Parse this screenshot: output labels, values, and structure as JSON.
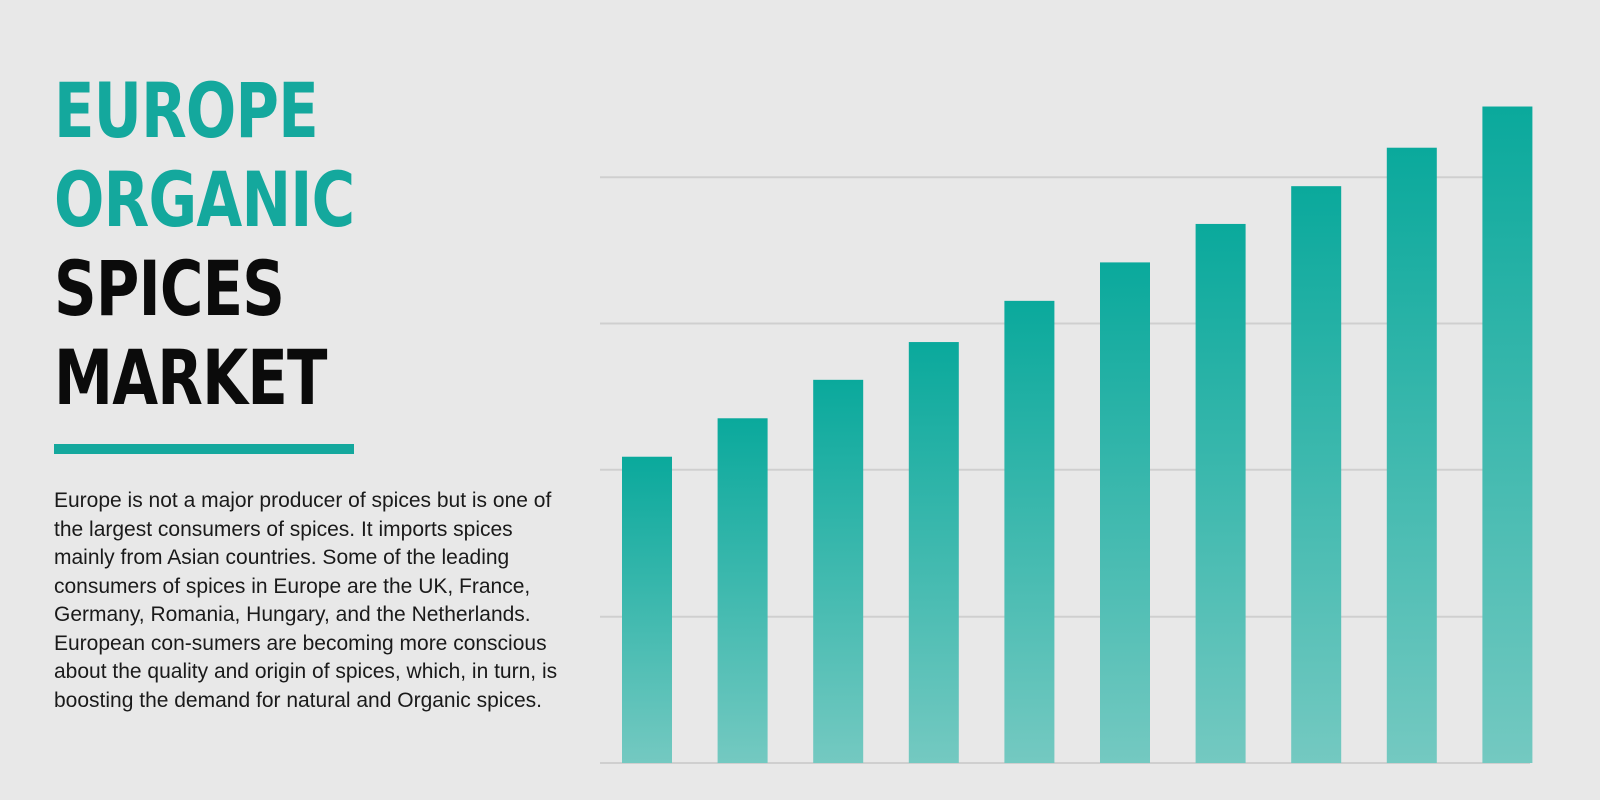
{
  "heading": {
    "line1": "EUROPE",
    "line2": "ORGANIC",
    "line3": "SPICES",
    "line4": "MARKET"
  },
  "description": "Europe is not a major producer of spices but is one of the largest consumers of spices. It imports spices mainly from Asian countries. Some of the leading consumers of spices in Europe are the UK, France, Germany, Romania, Hungary, and the Netherlands. European con-sumers are becoming more conscious about the quality and origin of spices, which, in turn, is boosting the demand for natural and Organic spices.",
  "colors": {
    "accent": "#14a89d",
    "bar_top": "#0aa99c",
    "bar_bottom": "#74c9c1",
    "gridline": "#cfcfcf",
    "background": "#e8e8e8"
  },
  "chart_data": {
    "type": "bar",
    "categories": [
      "",
      "",
      "",
      "",
      "",
      "",
      "",
      "",
      "",
      ""
    ],
    "values": [
      44.6,
      50.2,
      55.8,
      61.3,
      67.3,
      72.9,
      78.5,
      84.0,
      89.6,
      95.6
    ],
    "ylim": [
      0,
      100
    ],
    "grid": true,
    "gridlines_at": [
      21.3,
      42.7,
      64.0,
      85.3
    ],
    "legend": "none"
  }
}
